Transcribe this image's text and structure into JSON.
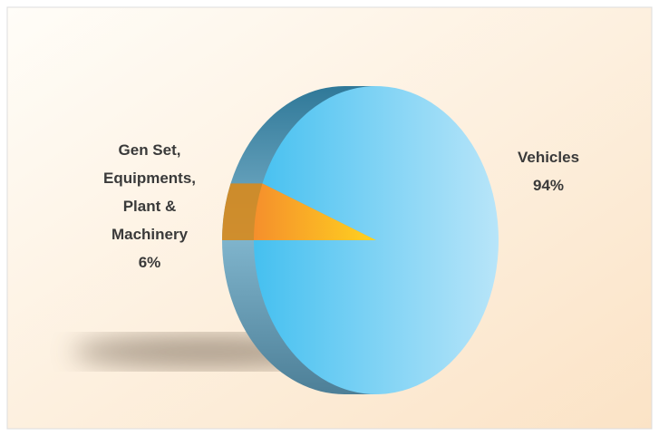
{
  "chart_data": {
    "type": "pie",
    "categories": [
      "Vehicles",
      "Gen Set, Equipments, Plant & Machinery"
    ],
    "values": [
      94,
      6
    ],
    "value_labels": [
      "94%",
      "6%"
    ],
    "colors": [
      "#5cc8f2",
      "#f7a62a"
    ]
  }
}
